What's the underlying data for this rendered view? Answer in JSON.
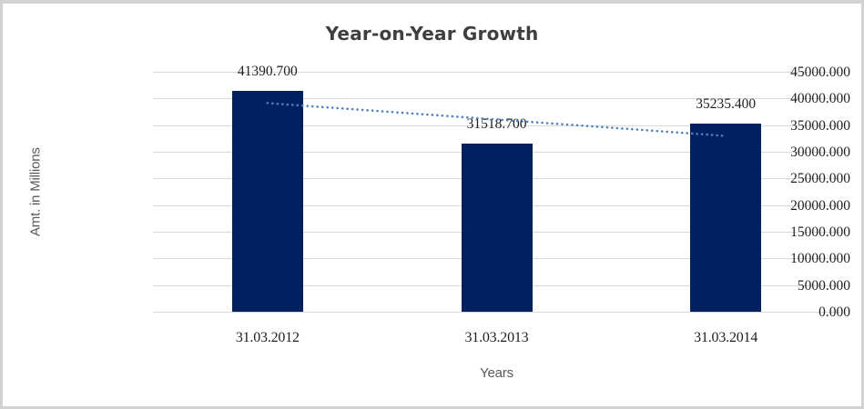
{
  "chart_data": {
    "type": "bar",
    "title": "Year-on-Year Growth",
    "xlabel": "Years",
    "ylabel": "Amt. in Millions",
    "categories": [
      "31.03.2012",
      "31.03.2013",
      "31.03.2014"
    ],
    "series": [
      {
        "name": "Amt. in Millions",
        "values": [
          41390.7,
          31518.7,
          35235.4
        ]
      }
    ],
    "data_labels": [
      "41390.700",
      "31518.700",
      "35235.400"
    ],
    "ylim": [
      0,
      45000
    ],
    "ytick_step": 5000,
    "ytick_labels": [
      "0.000",
      "5000.000",
      "10000.000",
      "15000.000",
      "20000.000",
      "25000.000",
      "30000.000",
      "35000.000",
      "40000.000",
      "45000.000"
    ],
    "grid": true,
    "legend": "none",
    "trendline": {
      "kind": "linear",
      "style": "dotted",
      "values_at_categories": [
        39125.9,
        36048.3,
        32970.6
      ]
    },
    "colors": {
      "bar": "#002060",
      "trendline": "#4F81BD",
      "gridline": "#D9D9D9",
      "title_text": "#3F3F3F",
      "tick_text": "#1F1F1F",
      "axis_title_text": "#595959",
      "frame_border": "#D2D2D2"
    }
  }
}
